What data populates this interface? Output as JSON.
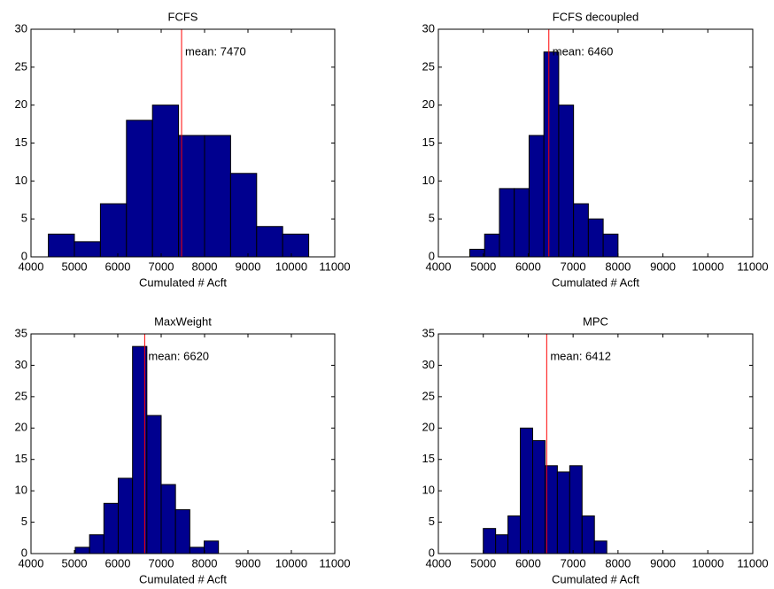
{
  "chart_data": [
    {
      "type": "histogram",
      "title": "FCFS",
      "xlabel": "Cumulated # Acft",
      "bins": [
        4400,
        5000,
        5600,
        6200,
        6800,
        7400,
        8000,
        8600,
        9200,
        9800,
        10400
      ],
      "values": [
        3,
        2,
        7,
        18,
        20,
        16,
        16,
        11,
        4,
        3
      ],
      "color": "#00008f",
      "line_color": "#ff0000",
      "mean": {
        "value": 7470,
        "label": "mean: 7470"
      },
      "xlim": [
        4000,
        11000
      ],
      "xticks": [
        4000,
        5000,
        6000,
        7000,
        8000,
        9000,
        10000,
        11000
      ],
      "ylim": [
        0,
        30
      ],
      "yticks": [
        0,
        5,
        10,
        15,
        20,
        25,
        30
      ]
    },
    {
      "type": "histogram",
      "title": "FCFS decoupled",
      "xlabel": "Cumulated # Acft",
      "bins": [
        4700,
        5030,
        5360,
        5690,
        6020,
        6350,
        6680,
        7010,
        7340,
        7670,
        8000
      ],
      "values": [
        1,
        3,
        9,
        9,
        16,
        27,
        20,
        7,
        5,
        3
      ],
      "color": "#00008f",
      "line_color": "#ff0000",
      "mean": {
        "value": 6460,
        "label": "mean: 6460"
      },
      "xlim": [
        4000,
        11000
      ],
      "xticks": [
        4000,
        5000,
        6000,
        7000,
        8000,
        9000,
        10000,
        11000
      ],
      "ylim": [
        0,
        30
      ],
      "yticks": [
        0,
        5,
        10,
        15,
        20,
        25,
        30
      ]
    },
    {
      "type": "histogram",
      "title": "MaxWeight",
      "xlabel": "Cumulated # Acft",
      "bins": [
        5020,
        5350,
        5680,
        6010,
        6340,
        6670,
        7000,
        7330,
        7660,
        7990,
        8320
      ],
      "values": [
        1,
        3,
        8,
        12,
        33,
        22,
        11,
        7,
        1,
        2
      ],
      "color": "#00008f",
      "line_color": "#ff0000",
      "mean": {
        "value": 6620,
        "label": "mean: 6620"
      },
      "xlim": [
        4000,
        11000
      ],
      "xticks": [
        4000,
        5000,
        6000,
        7000,
        8000,
        9000,
        10000,
        11000
      ],
      "ylim": [
        0,
        35
      ],
      "yticks": [
        0,
        5,
        10,
        15,
        20,
        25,
        30,
        35
      ]
    },
    {
      "type": "histogram",
      "title": "MPC",
      "xlabel": "Cumulated # Acft",
      "bins": [
        5000,
        5275,
        5550,
        5825,
        6100,
        6375,
        6650,
        6925,
        7200,
        7475,
        7750
      ],
      "values": [
        4,
        3,
        6,
        20,
        18,
        14,
        13,
        14,
        6,
        2
      ],
      "color": "#00008f",
      "line_color": "#ff0000",
      "mean": {
        "value": 6412,
        "label": "mean: 6412"
      },
      "xlim": [
        4000,
        11000
      ],
      "xticks": [
        4000,
        5000,
        6000,
        7000,
        8000,
        9000,
        10000,
        11000
      ],
      "ylim": [
        0,
        35
      ],
      "yticks": [
        0,
        5,
        10,
        15,
        20,
        25,
        30,
        35
      ]
    }
  ]
}
